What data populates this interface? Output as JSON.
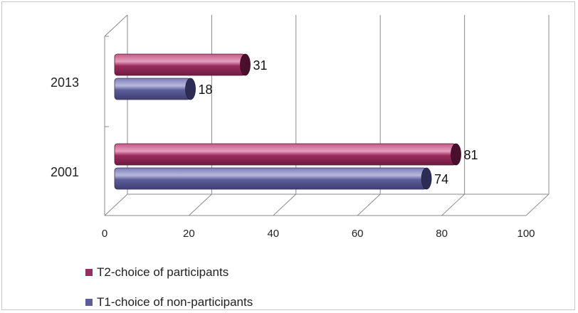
{
  "chart_data": {
    "type": "bar",
    "orientation": "horizontal",
    "style": "3d-cylinder",
    "categories": [
      "2001",
      "2013"
    ],
    "series": [
      {
        "name": "T2-choice of participants",
        "values": [
          81,
          31
        ],
        "color": "#9b2d5e"
      },
      {
        "name": "T1-choice of non-participants",
        "values": [
          74,
          18
        ],
        "color": "#5d5d99"
      }
    ],
    "xlim": [
      0,
      100
    ],
    "x_ticks": [
      "0",
      "20",
      "40",
      "60",
      "80",
      "100"
    ],
    "grid": true,
    "legend_position": "bottom-left",
    "data_labels": true
  }
}
